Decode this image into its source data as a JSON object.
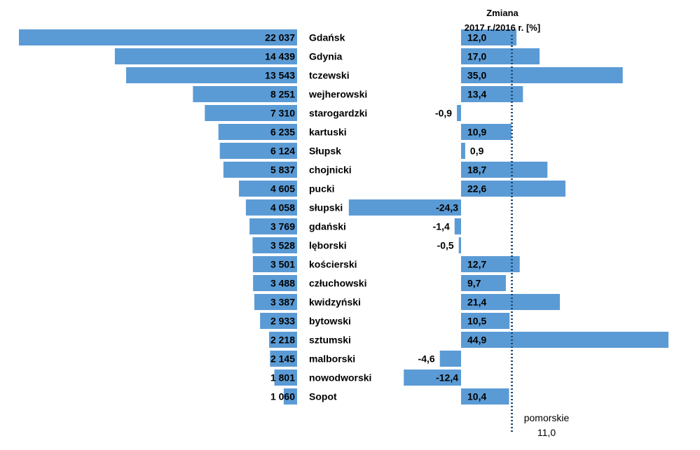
{
  "chart_data": {
    "type": "bar",
    "bar_color": "#5b9bd5",
    "average_line_color": "#1f4e79",
    "categories": [
      "Gdańsk",
      "Gdynia",
      "tczewski",
      "wejherowski",
      "starogardzki",
      "kartuski",
      "Słupsk",
      "chojnicki",
      "pucki",
      "słupski",
      "gdański",
      "lęborski",
      "kościerski",
      "człuchowski",
      "kwidzyński",
      "bytowski",
      "sztumski",
      "malborski",
      "nowodworski",
      "Sopot"
    ],
    "series": [
      {
        "values": [
          22037,
          14439,
          13543,
          8251,
          7310,
          6235,
          6124,
          5837,
          4605,
          4058,
          3769,
          3528,
          3501,
          3488,
          3387,
          2933,
          2218,
          2145,
          1801,
          1060
        ],
        "value_labels": [
          "22 037",
          "14 439",
          "13 543",
          "8 251",
          "7 310",
          "6 235",
          "6 124",
          "5 837",
          "4 605",
          "4 058",
          "3 769",
          "3 528",
          "3 501",
          "3 488",
          "3 387",
          "2 933",
          "2 218",
          "2 145",
          "1 801",
          "1 060"
        ]
      },
      {
        "name": "Zmiana 2017 r./2016 r. [%]",
        "values": [
          12.0,
          17.0,
          35.0,
          13.4,
          -0.9,
          10.9,
          0.9,
          18.7,
          22.6,
          -24.3,
          -1.4,
          -0.5,
          12.7,
          9.7,
          21.4,
          10.5,
          44.9,
          -4.6,
          -12.4,
          10.4
        ],
        "value_labels": [
          "12,0",
          "17,0",
          "35,0",
          "13,4",
          "-0,9",
          "10,9",
          "0,9",
          "18,7",
          "22,6",
          "-24,3",
          "-1,4",
          "-0,5",
          "12,7",
          "9,7",
          "21,4",
          "10,5",
          "44,9",
          "-4,6",
          "-12,4",
          "10,4"
        ]
      }
    ],
    "right_title_lines": [
      "Zmiana",
      "2017 r./2016 r. [%]"
    ],
    "reference_line": {
      "value": 11.0,
      "label": "pomorskie",
      "value_label": "11,0"
    }
  }
}
